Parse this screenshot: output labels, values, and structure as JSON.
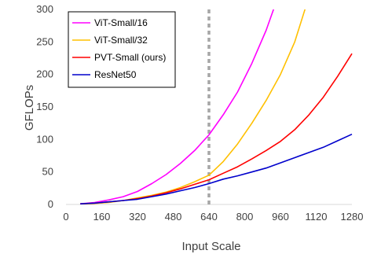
{
  "chart_data": {
    "type": "line",
    "title": "",
    "xlabel": "Input Scale",
    "ylabel": "GFLOPs",
    "xlim": [
      0,
      1280
    ],
    "ylim": [
      0,
      300
    ],
    "xticks": [
      0,
      160,
      320,
      480,
      640,
      800,
      960,
      1120,
      1280
    ],
    "yticks": [
      0,
      50,
      100,
      150,
      200,
      250,
      300
    ],
    "grid": false,
    "legend_position": "top-left",
    "reference_line": {
      "x": 640,
      "style": "dashed",
      "color": "#a6a6a6"
    },
    "series": [
      {
        "name": "ViT-Small/16",
        "color": "#ff00ff",
        "x": [
          64,
          128,
          192,
          256,
          320,
          384,
          448,
          512,
          576,
          640,
          704,
          768,
          832,
          896,
          960
        ],
        "y": [
          1,
          3,
          7,
          12,
          20,
          32,
          46,
          63,
          83,
          107,
          138,
          173,
          217,
          268,
          330
        ]
      },
      {
        "name": "ViT-Small/32",
        "color": "#ffc000",
        "x": [
          64,
          128,
          192,
          256,
          320,
          384,
          448,
          512,
          576,
          640,
          704,
          768,
          832,
          896,
          960,
          1024,
          1088
        ],
        "y": [
          0.5,
          1.5,
          3,
          6,
          10,
          14,
          19,
          26,
          35,
          45,
          66,
          93,
          125,
          160,
          200,
          250,
          320
        ]
      },
      {
        "name": "PVT-Small (ours)",
        "color": "#ff0000",
        "x": [
          64,
          128,
          192,
          256,
          320,
          384,
          448,
          512,
          576,
          640,
          704,
          768,
          832,
          896,
          960,
          1024,
          1088,
          1152,
          1216,
          1280
        ],
        "y": [
          1,
          2,
          4,
          6,
          9,
          13,
          18,
          24,
          31,
          38,
          48,
          58,
          70,
          83,
          97,
          115,
          138,
          165,
          197,
          232
        ]
      },
      {
        "name": "ResNet50",
        "color": "#0000cc",
        "x": [
          64,
          128,
          192,
          256,
          320,
          384,
          448,
          512,
          576,
          640,
          704,
          768,
          832,
          896,
          960,
          1024,
          1088,
          1152,
          1216,
          1280
        ],
        "y": [
          1,
          2,
          4,
          6,
          8,
          12,
          16,
          21,
          26,
          32,
          39,
          44,
          50,
          56,
          64,
          72,
          80,
          88,
          98,
          108
        ]
      }
    ]
  }
}
